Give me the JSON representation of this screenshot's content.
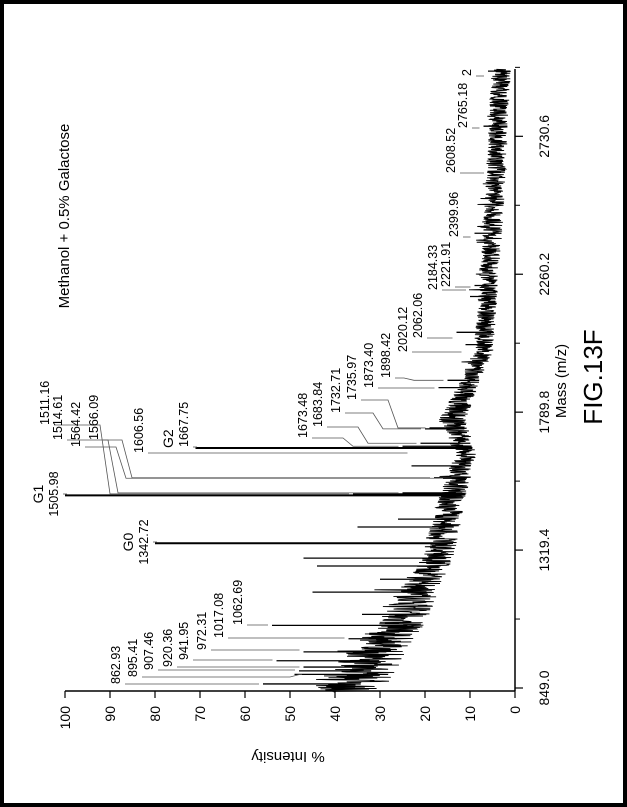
{
  "figure_label": "FIG.13F",
  "chart_data": {
    "type": "line",
    "orientation": "rotated 90 degrees counter-clockwise (mass axis vertical, intensity axis horizontal)",
    "title": "Methanol + 0.5% Galactose",
    "xlabel": "Mass (m/z)",
    "ylabel": "% Intensity",
    "x_ticks": [
      "849.0",
      "1319.4",
      "1789.8",
      "2260.2",
      "2730.6"
    ],
    "y_ticks": [
      "0",
      "10",
      "20",
      "30",
      "40",
      "50",
      "60",
      "70",
      "80",
      "90",
      "100"
    ],
    "xlim": [
      849,
      2960
    ],
    "ylim": [
      0,
      100
    ],
    "grid": false,
    "line_color": "#000000",
    "peaks": [
      {
        "mass": 862.93,
        "label": "862.93",
        "intensity": 56
      },
      {
        "mass": 895.41,
        "label": "895.41",
        "intensity": 49
      },
      {
        "mass": 907.46,
        "label": "907.46",
        "intensity": 48
      },
      {
        "mass": 920.36,
        "label": "920.36",
        "intensity": 47
      },
      {
        "mass": 941.95,
        "label": "941.95",
        "intensity": 53
      },
      {
        "mass": 972.31,
        "label": "972.31",
        "intensity": 47
      },
      {
        "mass": 1017.08,
        "label": "1017.08",
        "intensity": 37
      },
      {
        "mass": 1062.69,
        "label": "1062.69",
        "intensity": 54
      },
      {
        "mass": 1342.72,
        "label": "1342.72",
        "tag": "G0",
        "intensity": 80
      },
      {
        "mass": 1505.98,
        "label": "1505.98",
        "tag": "G1",
        "intensity": 100
      },
      {
        "mass": 1511.16,
        "label": "1511.16",
        "intensity": 36
      },
      {
        "mass": 1514.61,
        "label": "1514.61",
        "intensity": 25
      },
      {
        "mass": 1564.42,
        "label": "1564.42",
        "intensity": 16
      },
      {
        "mass": 1566.09,
        "label": "1566.09",
        "intensity": 18
      },
      {
        "mass": 1606.56,
        "label": "1606.56",
        "intensity": 23
      },
      {
        "mass": 1667.75,
        "label": "1667.75",
        "tag": "G2",
        "intensity": 71
      },
      {
        "mass": 1673.48,
        "label": "1673.48",
        "intensity": 25
      },
      {
        "mass": 1683.84,
        "label": "1683.84",
        "intensity": 21
      },
      {
        "mass": 1732.71,
        "label": "1732.71",
        "intensity": 20
      },
      {
        "mass": 1735.97,
        "label": "1735.97",
        "intensity": 19
      },
      {
        "mass": 1873.4,
        "label": "1873.40",
        "intensity": 17
      },
      {
        "mass": 1898.42,
        "label": "1898.42",
        "intensity": 15
      },
      {
        "mass": 2020.12,
        "label": "2020.12",
        "intensity": 11
      },
      {
        "mass": 2062.06,
        "label": "2062.06",
        "intensity": 13
      },
      {
        "mass": 2184.33,
        "label": "2184.33",
        "intensity": 10
      },
      {
        "mass": 2221.91,
        "label": "2221.91",
        "intensity": 9
      },
      {
        "mass": 2399.96,
        "label": "2399.96",
        "intensity": 9
      },
      {
        "mass": 2608.52,
        "label": "2608.52",
        "intensity": 6
      },
      {
        "mass": 2765.18,
        "label": "2765.18",
        "intensity": 7
      },
      {
        "mass": 2953,
        "label": "2",
        "intensity": 6
      }
    ],
    "unlabeled_peaks": [
      {
        "mass": 1100,
        "intensity": 34
      },
      {
        "mass": 1176,
        "intensity": 45
      },
      {
        "mass": 1220,
        "intensity": 30
      },
      {
        "mass": 1265,
        "intensity": 44
      },
      {
        "mass": 1292,
        "intensity": 47
      },
      {
        "mass": 1398,
        "intensity": 35
      },
      {
        "mass": 1425,
        "intensity": 26
      }
    ],
    "baseline": [
      [
        849,
        37
      ],
      [
        1080,
        25
      ],
      [
        1310,
        17
      ],
      [
        1500,
        14
      ],
      [
        1650,
        11
      ],
      [
        1760,
        14
      ],
      [
        2000,
        7
      ],
      [
        2400,
        5
      ],
      [
        2960,
        3
      ]
    ]
  }
}
